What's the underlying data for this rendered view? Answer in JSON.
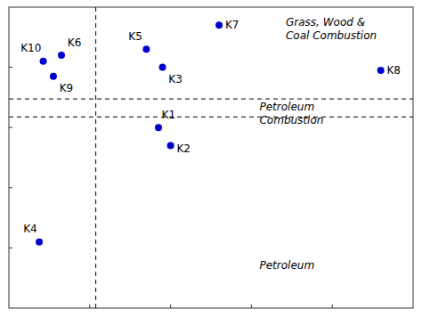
{
  "chart_data": {
    "type": "scatter",
    "x": [
      0.085,
      0.13,
      0.11,
      0.34,
      0.38,
      0.52,
      0.92,
      0.37,
      0.4,
      0.075
    ],
    "values": [
      0.82,
      0.84,
      0.77,
      0.86,
      0.8,
      0.94,
      0.79,
      0.6,
      0.54,
      0.22
    ],
    "labels": [
      "K10",
      "K6",
      "K9",
      "K5",
      "K3",
      "K7",
      "K8",
      "K1",
      "K2",
      "K4"
    ],
    "color": "#0000cc",
    "marker": "circle",
    "vlines": [
      0.215
    ],
    "hlines": [
      0.695,
      0.635
    ],
    "line_style": "dashed",
    "annotations": [
      "Grass, Wood &\nCoal Combustion",
      "Petroleum\nCombustion",
      "Petroleum"
    ],
    "xlim": [
      0.0,
      1.0
    ],
    "ylim": [
      0.0,
      1.0
    ],
    "xticks": [
      0.2,
      0.4,
      0.6,
      0.8
    ],
    "yticks": [
      0.2,
      0.4,
      0.6,
      0.8
    ],
    "grid": false,
    "tick_labels": false
  }
}
